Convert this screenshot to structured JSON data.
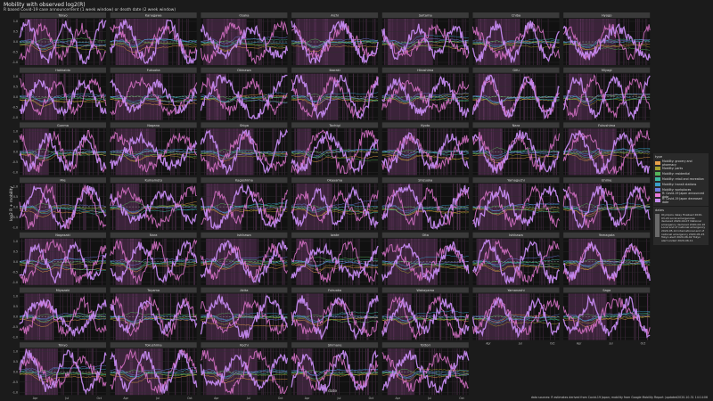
{
  "title": "Mobility with observed log2(R)",
  "subtitle": "R based Covid-19 case announcement (1 week window) or death date (2 week window)",
  "caption": "data sources: R estimates derived from Covid-19 Japan; mobility from Google Mobility Report (updated2020-10-31 14:14:06",
  "chart_data": {
    "type": "line",
    "panels": [
      "Tokyo",
      "Kanagawa",
      "Osaka",
      "Aichi",
      "Saitama",
      "Chiba",
      "Hyogo",
      "Hokkaido",
      "Fukuoka",
      "Okinawa",
      "Ibaraki",
      "Hiroshima",
      "Gifu",
      "Miyagi",
      "Gunma",
      "Nagano",
      "Shiga",
      "Tochigi",
      "Kyoto",
      "Nara",
      "Fukushima",
      "Mie",
      "Kumamoto",
      "Kagoshima",
      "Okayama",
      "Shizuoka",
      "Yamaguchi",
      "Ehime",
      "Nagasaki",
      "Nara",
      "Ishikawa",
      "Iwate",
      "Oita",
      "Ishikawa",
      "Yamagata",
      "Miyazaki",
      "Toyama",
      "Akita",
      "Fukuoka",
      "Wakayama",
      "Yamanashi",
      "Saga",
      "Tokyo",
      "Tokushima",
      "Kochi",
      "Shimane",
      "Tottori"
    ],
    "xticks": [
      "Apr",
      "Jul",
      "Oct"
    ],
    "yticks": [
      "1.0",
      "0.5",
      "0.0",
      "-0.5",
      "-1.0"
    ],
    "ylim": [
      -1,
      1
    ],
    "xlabel": "date",
    "ylabel": "log2 R + mobility",
    "series": [
      {
        "name": "Mobility: grocery and pharmacy",
        "color": "#e8a14a"
      },
      {
        "name": "Mobility: parks",
        "color": "#a3a12e"
      },
      {
        "name": "Mobility: residential",
        "color": "#55b45a"
      },
      {
        "name": "Mobility: retail and recreation",
        "color": "#3fb9a0"
      },
      {
        "name": "Mobility: transit stations",
        "color": "#3a9fc8"
      },
      {
        "name": "Mobility: workplaces",
        "color": "#6f7ee0"
      },
      {
        "name": "R: Covid-19 Japan announced date",
        "color": "#e87ad8"
      },
      {
        "name": "R: Covid-19 Japan deceased date",
        "color": "#c58af0"
      }
    ]
  },
  "legend": {
    "title": "type",
    "items": [
      {
        "label": "Mobility: grocery and pharmacy",
        "color": "#e8a14a"
      },
      {
        "label": "Mobility: parks",
        "color": "#a3a12e"
      },
      {
        "label": "Mobility: residential",
        "color": "#55b45a"
      },
      {
        "label": "Mobility: retail and recreation",
        "color": "#3fb9a0"
      },
      {
        "label": "Mobility: transit stations",
        "color": "#3a9fc8"
      },
      {
        "label": "Mobility: workplaces",
        "color": "#6f7ee0"
      },
      {
        "label": "R: Covid-19 Japan announced date",
        "color": "#e87ad8"
      },
      {
        "label": "R: Covid-19 Japan deceased date",
        "color": "#c58af0"
      }
    ]
  },
  "events": {
    "title": "dates",
    "text": "Olympics delay finalised 2020-03-24 Local emergencies declared 2020-04-07 National emergency declared 2020-04-16 Local end of national emergency 2020-05-14 International end of national emergency 2020-05-25 Tokyo alert 2020-06-02 Tokyo alert ended 2020-06-11"
  }
}
